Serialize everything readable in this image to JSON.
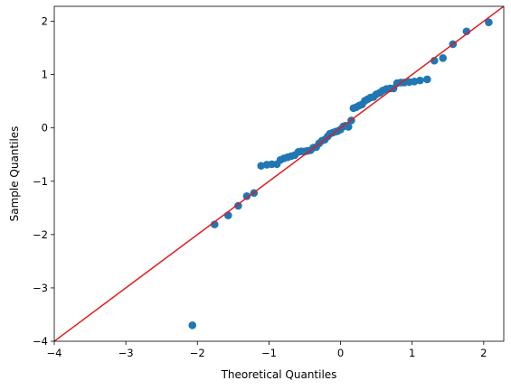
{
  "chart_data": {
    "type": "scatter",
    "title": "",
    "xlabel": "Theoretical Quantiles",
    "ylabel": "Sample Quantiles",
    "xlim": [
      -4,
      2.28
    ],
    "ylim": [
      -4,
      2.28
    ],
    "xticks": [
      "−4",
      "−3",
      "−2",
      "−1",
      "0",
      "1",
      "2"
    ],
    "xtick_values": [
      -4,
      -3,
      -2,
      -1,
      0,
      1,
      2
    ],
    "yticks": [
      "−4",
      "−3",
      "−2",
      "−1",
      "0",
      "1",
      "2"
    ],
    "ytick_values": [
      -4,
      -3,
      -2,
      -1,
      0,
      1,
      2
    ],
    "grid": false,
    "point_color": "#1f77b4",
    "line_color": "#e41a1c",
    "reference_line": {
      "x": [
        -4,
        2.28
      ],
      "y": [
        -4,
        2.28
      ]
    },
    "points": [
      {
        "x": -2.07,
        "y": -3.7
      },
      {
        "x": -1.76,
        "y": -1.81
      },
      {
        "x": -1.57,
        "y": -1.64
      },
      {
        "x": -1.43,
        "y": -1.46
      },
      {
        "x": -1.31,
        "y": -1.28
      },
      {
        "x": -1.21,
        "y": -1.22
      },
      {
        "x": -1.11,
        "y": -0.71
      },
      {
        "x": -1.03,
        "y": -0.69
      },
      {
        "x": -0.96,
        "y": -0.68
      },
      {
        "x": -0.89,
        "y": -0.68
      },
      {
        "x": -0.84,
        "y": -0.6
      },
      {
        "x": -0.79,
        "y": -0.57
      },
      {
        "x": -0.74,
        "y": -0.55
      },
      {
        "x": -0.69,
        "y": -0.53
      },
      {
        "x": -0.64,
        "y": -0.51
      },
      {
        "x": -0.59,
        "y": -0.45
      },
      {
        "x": -0.55,
        "y": -0.44
      },
      {
        "x": -0.5,
        "y": -0.44
      },
      {
        "x": -0.46,
        "y": -0.43
      },
      {
        "x": -0.42,
        "y": -0.42
      },
      {
        "x": -0.38,
        "y": -0.37
      },
      {
        "x": -0.34,
        "y": -0.36
      },
      {
        "x": -0.3,
        "y": -0.29
      },
      {
        "x": -0.26,
        "y": -0.24
      },
      {
        "x": -0.22,
        "y": -0.22
      },
      {
        "x": -0.18,
        "y": -0.16
      },
      {
        "x": -0.15,
        "y": -0.11
      },
      {
        "x": -0.11,
        "y": -0.09
      },
      {
        "x": -0.07,
        "y": -0.07
      },
      {
        "x": -0.04,
        "y": -0.06
      },
      {
        "x": 0.0,
        "y": -0.03
      },
      {
        "x": 0.04,
        "y": 0.03
      },
      {
        "x": 0.07,
        "y": 0.04
      },
      {
        "x": 0.11,
        "y": 0.02
      },
      {
        "x": 0.15,
        "y": 0.14
      },
      {
        "x": 0.18,
        "y": 0.37
      },
      {
        "x": 0.22,
        "y": 0.39
      },
      {
        "x": 0.26,
        "y": 0.42
      },
      {
        "x": 0.3,
        "y": 0.44
      },
      {
        "x": 0.34,
        "y": 0.51
      },
      {
        "x": 0.38,
        "y": 0.54
      },
      {
        "x": 0.42,
        "y": 0.57
      },
      {
        "x": 0.46,
        "y": 0.58
      },
      {
        "x": 0.5,
        "y": 0.63
      },
      {
        "x": 0.55,
        "y": 0.66
      },
      {
        "x": 0.59,
        "y": 0.7
      },
      {
        "x": 0.64,
        "y": 0.73
      },
      {
        "x": 0.69,
        "y": 0.74
      },
      {
        "x": 0.74,
        "y": 0.74
      },
      {
        "x": 0.79,
        "y": 0.84
      },
      {
        "x": 0.84,
        "y": 0.85
      },
      {
        "x": 0.89,
        "y": 0.85
      },
      {
        "x": 0.96,
        "y": 0.86
      },
      {
        "x": 1.03,
        "y": 0.87
      },
      {
        "x": 1.11,
        "y": 0.89
      },
      {
        "x": 1.21,
        "y": 0.91
      },
      {
        "x": 1.31,
        "y": 1.26
      },
      {
        "x": 1.43,
        "y": 1.31
      },
      {
        "x": 1.57,
        "y": 1.57
      },
      {
        "x": 1.76,
        "y": 1.81
      },
      {
        "x": 2.07,
        "y": 1.98
      }
    ]
  }
}
